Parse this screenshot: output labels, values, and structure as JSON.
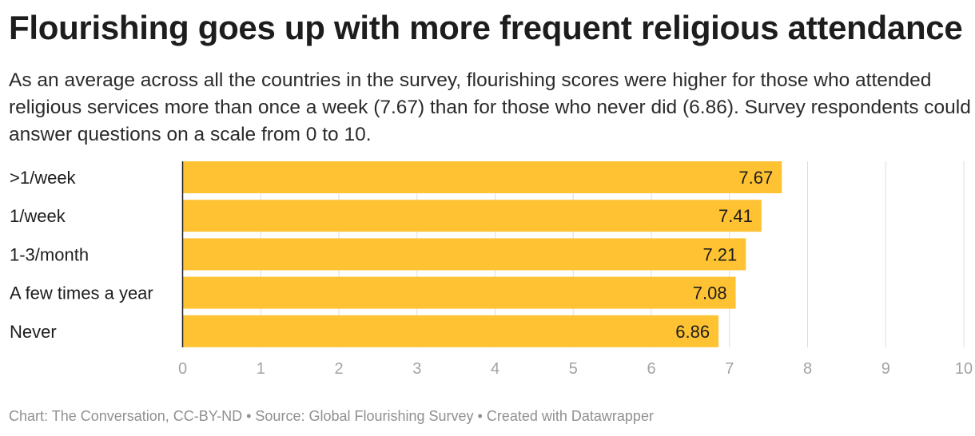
{
  "header": {
    "title": "Flourishing goes up with more frequent religious attendance",
    "subtitle": "As an average across all the countries in the survey, flourishing scores were higher for those who attended religious services more than once a week (7.67) than for those who never did (6.86). Survey respondents could answer questions on a scale from 0 to 10."
  },
  "chart_data": {
    "type": "bar",
    "orientation": "horizontal",
    "categories": [
      ">1/week",
      "1/week",
      "1-3/month",
      "A few times a year",
      "Never"
    ],
    "values": [
      7.67,
      7.41,
      7.21,
      7.08,
      6.86
    ],
    "value_labels": [
      "7.67",
      "7.41",
      "7.21",
      "7.08",
      "6.86"
    ],
    "xlim": [
      0,
      10
    ],
    "xticks": [
      "0",
      "1",
      "2",
      "3",
      "4",
      "5",
      "6",
      "7",
      "8",
      "9",
      "10"
    ],
    "grid": true,
    "bar_color": "#fec233",
    "title": "Flourishing goes up with more frequent religious attendance",
    "xlabel": "",
    "ylabel": ""
  },
  "footer": {
    "credit": "Chart: The Conversation, CC-BY-ND • Source: Global Flourishing Survey • Created with Datawrapper"
  }
}
